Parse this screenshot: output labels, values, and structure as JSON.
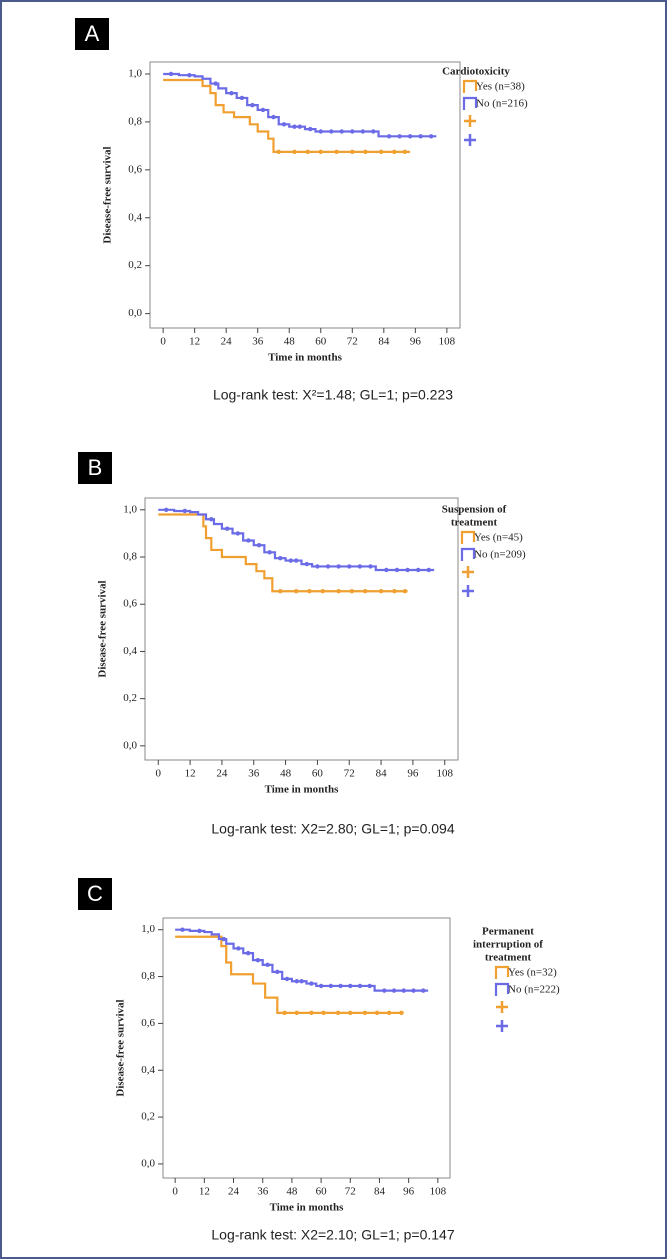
{
  "chart_data": [
    {
      "type": "step",
      "panel_label": "A",
      "ylabel": "Disease-free survival",
      "xlabel": "Time in months",
      "legend_title": [
        "Cardiotoxicity"
      ],
      "note": "Log-rank test: X²=1.48; GL=1; p=0.223",
      "xlim": [
        -5,
        113
      ],
      "ylim": [
        -0.06,
        1.05
      ],
      "xticks": [
        0,
        12,
        24,
        36,
        48,
        60,
        72,
        84,
        96,
        108
      ],
      "yticks": [
        {
          "value": 0,
          "label": "0,0"
        },
        {
          "value": 0.2,
          "label": "0,2"
        },
        {
          "value": 0.4,
          "label": "0,4"
        },
        {
          "value": 0.6,
          "label": "0,6"
        },
        {
          "value": 0.8,
          "label": "0,8"
        },
        {
          "value": 1,
          "label": "1,0"
        }
      ],
      "series": [
        {
          "name": "Yes (n=38)",
          "color": "#f0a030",
          "x": [
            0,
            15,
            18,
            20,
            23,
            27,
            33,
            36,
            40,
            42,
            94
          ],
          "values": [
            0.975,
            0.95,
            0.92,
            0.87,
            0.84,
            0.82,
            0.79,
            0.76,
            0.73,
            0.675,
            0.675
          ],
          "censored_x": [
            44,
            50,
            55,
            60,
            66,
            72,
            77,
            83,
            88,
            92
          ]
        },
        {
          "name": "No (n=216)",
          "color": "#6b6be8",
          "x": [
            0,
            6,
            12,
            15,
            18,
            21,
            24,
            28,
            32,
            36,
            40,
            44,
            48,
            54,
            58,
            82,
            104
          ],
          "values": [
            1.0,
            0.995,
            0.99,
            0.98,
            0.96,
            0.94,
            0.92,
            0.9,
            0.87,
            0.85,
            0.82,
            0.79,
            0.78,
            0.77,
            0.76,
            0.74,
            0.74
          ],
          "censored_x": [
            3,
            10,
            20,
            26,
            30,
            34,
            38,
            42,
            46,
            50,
            52,
            56,
            60,
            64,
            68,
            72,
            76,
            80,
            86,
            90,
            94,
            98,
            102
          ]
        }
      ]
    },
    {
      "type": "step",
      "panel_label": "B",
      "ylabel": "Disease-free survival",
      "xlabel": "Time in months",
      "legend_title": [
        "Suspension of",
        "treatment"
      ],
      "note": "Log-rank test: X2=2.80; GL=1; p=0.094",
      "xlim": [
        -5,
        113
      ],
      "ylim": [
        -0.06,
        1.05
      ],
      "xticks": [
        0,
        12,
        24,
        36,
        48,
        60,
        72,
        84,
        96,
        108
      ],
      "yticks": [
        {
          "value": 0,
          "label": "0,0"
        },
        {
          "value": 0.2,
          "label": "0,2"
        },
        {
          "value": 0.4,
          "label": "0,4"
        },
        {
          "value": 0.6,
          "label": "0,6"
        },
        {
          "value": 0.8,
          "label": "0,8"
        },
        {
          "value": 1,
          "label": "1,0"
        }
      ],
      "series": [
        {
          "name": "Yes (n=45)",
          "color": "#f0a030",
          "x": [
            0,
            17,
            18,
            20,
            24,
            33,
            37,
            40,
            43,
            94
          ],
          "values": [
            0.98,
            0.93,
            0.88,
            0.83,
            0.8,
            0.77,
            0.74,
            0.71,
            0.655,
            0.655
          ],
          "censored_x": [
            46,
            52,
            57,
            62,
            68,
            73,
            78,
            84,
            89,
            93
          ]
        },
        {
          "name": "No (n=209)",
          "color": "#6b6be8",
          "x": [
            0,
            6,
            12,
            15,
            18,
            21,
            24,
            28,
            32,
            36,
            40,
            44,
            48,
            54,
            58,
            82,
            104
          ],
          "values": [
            1.0,
            0.995,
            0.99,
            0.98,
            0.96,
            0.94,
            0.92,
            0.9,
            0.87,
            0.85,
            0.82,
            0.795,
            0.785,
            0.77,
            0.76,
            0.745,
            0.745
          ],
          "censored_x": [
            3,
            10,
            20,
            26,
            30,
            34,
            38,
            42,
            46,
            50,
            52,
            56,
            60,
            64,
            68,
            72,
            76,
            80,
            86,
            90,
            94,
            98,
            102
          ]
        }
      ]
    },
    {
      "type": "step",
      "panel_label": "C",
      "ylabel": "Disease-free survival",
      "xlabel": "Time in months",
      "legend_title": [
        "Permanent",
        "interruption of",
        "treatment"
      ],
      "note": "Log-rank test: X2=2.10; GL=1; p=0.147",
      "xlim": [
        -5,
        113
      ],
      "ylim": [
        -0.06,
        1.05
      ],
      "xticks": [
        0,
        12,
        24,
        36,
        48,
        60,
        72,
        84,
        96,
        108
      ],
      "yticks": [
        {
          "value": 0,
          "label": "0,0"
        },
        {
          "value": 0.2,
          "label": "0,2"
        },
        {
          "value": 0.4,
          "label": "0,4"
        },
        {
          "value": 0.6,
          "label": "0,6"
        },
        {
          "value": 0.8,
          "label": "0,8"
        },
        {
          "value": 1,
          "label": "1,0"
        }
      ],
      "series": [
        {
          "name": "Yes (n=32)",
          "color": "#f0a030",
          "x": [
            0,
            19,
            21,
            23,
            32,
            37,
            42,
            94
          ],
          "values": [
            0.97,
            0.93,
            0.86,
            0.81,
            0.77,
            0.71,
            0.645,
            0.645
          ],
          "censored_x": [
            45,
            50,
            56,
            61,
            67,
            72,
            78,
            83,
            88,
            93
          ]
        },
        {
          "name": "No (n=222)",
          "color": "#6b6be8",
          "x": [
            0,
            6,
            12,
            15,
            18,
            21,
            24,
            28,
            32,
            36,
            40,
            44,
            48,
            54,
            58,
            82,
            104
          ],
          "values": [
            1.0,
            0.995,
            0.99,
            0.98,
            0.96,
            0.94,
            0.92,
            0.9,
            0.87,
            0.85,
            0.82,
            0.79,
            0.78,
            0.77,
            0.76,
            0.74,
            0.74
          ],
          "censored_x": [
            3,
            10,
            20,
            26,
            30,
            34,
            38,
            42,
            46,
            50,
            52,
            56,
            60,
            64,
            68,
            72,
            76,
            80,
            86,
            90,
            94,
            98,
            102
          ]
        }
      ]
    }
  ]
}
